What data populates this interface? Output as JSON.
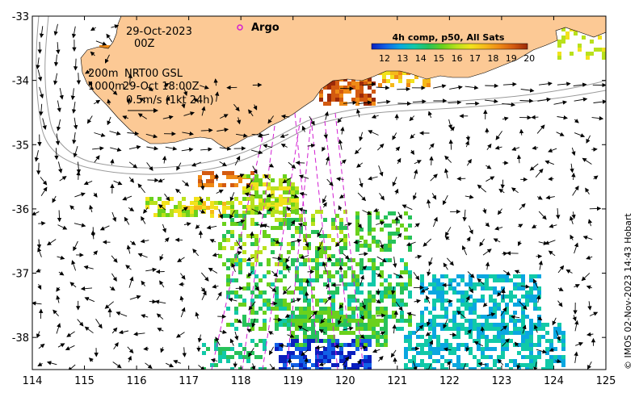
{
  "map": {
    "lon_range": [
      114,
      125
    ],
    "lat_range": [
      -38.5,
      -33
    ],
    "x_ticks": [
      "114",
      "115",
      "116",
      "117",
      "118",
      "119",
      "120",
      "121",
      "122",
      "123",
      "124",
      "125"
    ],
    "y_ticks": [
      "-33",
      "-34",
      "-35",
      "-36",
      "-37",
      "-38"
    ],
    "land_color": "#fcc995"
  },
  "labels": {
    "date": "29-Oct-2023",
    "time": "00Z",
    "depth1": "200m",
    "product": "NRT00 GSL",
    "depth2": "1000m",
    "product_time": "29-Oct 18:00Z",
    "scale": "0.5m/s (1kt 24h)",
    "argo": "Argo",
    "credit": "© IMOS 02-Nov-2023 14:43 Hobart"
  },
  "colorbar": {
    "title": "4h comp, p50, All Sats",
    "ticks": [
      "12",
      "13",
      "14",
      "15",
      "16",
      "17",
      "18",
      "19",
      "20"
    ],
    "colors": [
      "#0a1fbf",
      "#1261e6",
      "#0aa7e0",
      "#11c9a8",
      "#27c25a",
      "#6ad11c",
      "#b9e11c",
      "#f2e21c",
      "#f6b91a",
      "#ef8a16",
      "#d35a10",
      "#9c2a08"
    ]
  }
}
